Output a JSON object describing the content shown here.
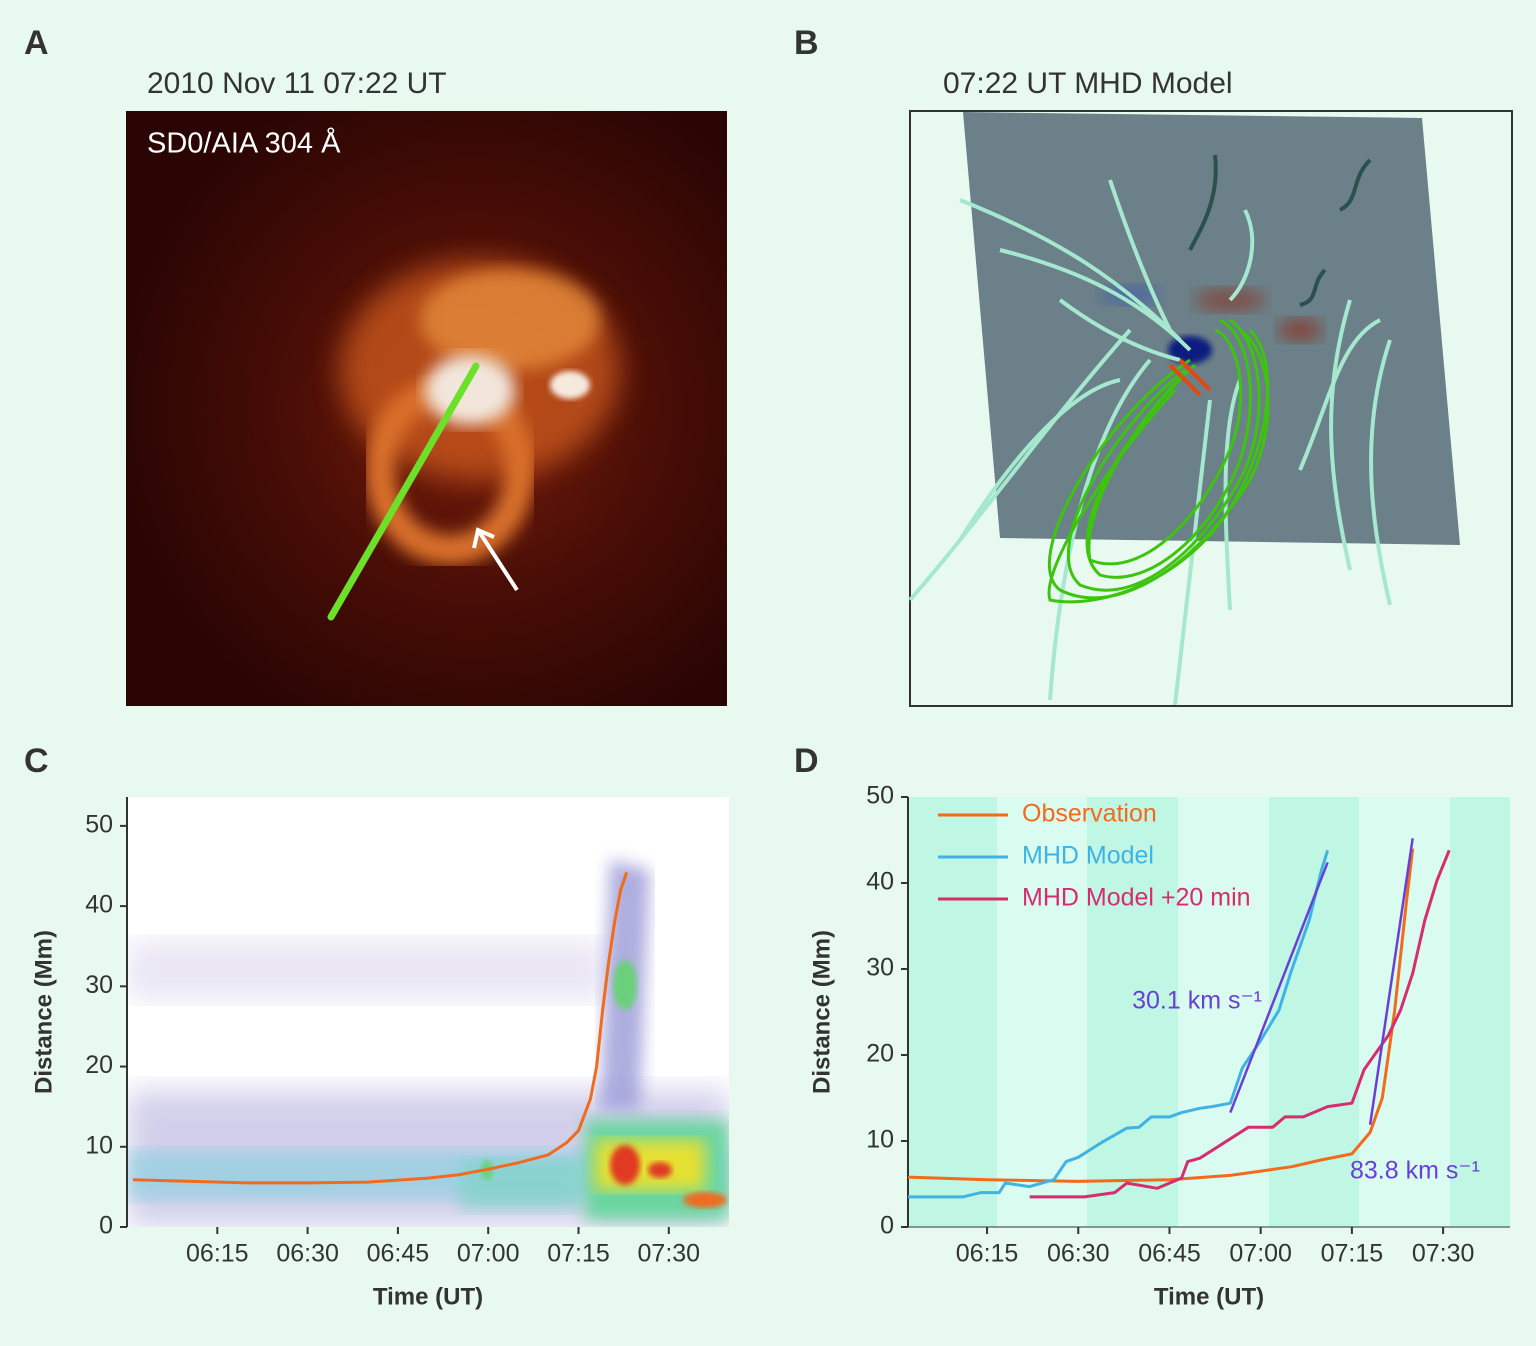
{
  "figure": {
    "panel_a": {
      "label": "A",
      "title": "2010 Nov 11 07:22 UT",
      "caption": "SD0/AIA 304 Å"
    },
    "panel_b": {
      "label": "B",
      "title": "07:22 UT MHD Model"
    }
  },
  "chart_data": [
    {
      "panel_label": "C",
      "type": "line",
      "xlabel": "Time (UT)",
      "ylabel": "Distance (Mm)",
      "xlim": [
        "06:00",
        "07:40"
      ],
      "ylim": [
        0,
        53.6
      ],
      "xticks": [
        "06:15",
        "06:30",
        "06:45",
        "07:00",
        "07:15",
        "07:30"
      ],
      "yticks": [
        0,
        10,
        20,
        30,
        40,
        50
      ],
      "series": [
        {
          "color": "#f26a1b",
          "x": [
            "06:01",
            "06:10",
            "06:20",
            "06:30",
            "06:40",
            "06:50",
            "06:55",
            "07:00",
            "07:05",
            "07:10",
            "07:13",
            "07:15",
            "07:16",
            "07:17",
            "07:18",
            "07:19",
            "07:20",
            "07:21",
            "07:22",
            "07:23"
          ],
          "values": [
            5.9,
            5.7,
            5.5,
            5.5,
            5.6,
            6.1,
            6.5,
            7.2,
            8.0,
            9.0,
            10.5,
            12,
            14,
            16,
            20,
            27,
            33,
            38,
            42,
            44.2
          ]
        }
      ]
    },
    {
      "panel_label": "D",
      "type": "line",
      "xlabel": "Time (UT)",
      "ylabel": "Distance (Mm)",
      "xlim": [
        "06:02",
        "07:41"
      ],
      "ylim": [
        0,
        50
      ],
      "xticks": [
        "06:15",
        "06:30",
        "06:45",
        "07:00",
        "07:15",
        "07:30"
      ],
      "yticks": [
        0,
        10,
        20,
        30,
        40,
        50
      ],
      "legend": "upper left",
      "series": [
        {
          "name": "Observation",
          "color": "#f26a1b",
          "x": [
            "06:02",
            "06:15",
            "06:30",
            "06:45",
            "06:55",
            "07:00",
            "07:05",
            "07:10",
            "07:15",
            "07:18",
            "07:20",
            "07:22",
            "07:24",
            "07:25"
          ],
          "values": [
            5.8,
            5.5,
            5.3,
            5.5,
            6.0,
            6.5,
            7.0,
            7.8,
            8.5,
            11,
            15,
            25,
            38,
            44
          ]
        },
        {
          "name": "MHD Model",
          "color": "#3fb2e6",
          "x": [
            "06:02",
            "06:11",
            "06:14",
            "06:17",
            "06:18",
            "06:22",
            "06:26",
            "06:28",
            "06:30",
            "06:34",
            "06:38",
            "06:40",
            "06:42",
            "06:45",
            "06:47",
            "06:50",
            "06:52",
            "06:55",
            "06:57",
            "07:00",
            "07:03",
            "07:05",
            "07:08",
            "07:10",
            "07:11"
          ],
          "values": [
            3.5,
            3.5,
            4.0,
            4.0,
            5.1,
            4.7,
            5.5,
            7.6,
            8.1,
            9.9,
            11.5,
            11.6,
            12.8,
            12.8,
            13.3,
            13.8,
            14.0,
            14.4,
            18.5,
            21.7,
            25.2,
            29.7,
            35.7,
            41.5,
            43.8
          ]
        },
        {
          "name": "MHD Model +20 min",
          "color": "#d62d6e",
          "x": [
            "06:22",
            "06:31",
            "06:36",
            "06:38",
            "06:43",
            "06:47",
            "06:48",
            "06:50",
            "06:54",
            "06:58",
            "07:02",
            "07:04",
            "07:07",
            "07:11",
            "07:15",
            "07:17",
            "07:21",
            "07:23",
            "07:25",
            "07:27",
            "07:29",
            "07:31"
          ],
          "values": [
            3.5,
            3.5,
            4.0,
            5.1,
            4.5,
            5.7,
            7.6,
            8.0,
            9.8,
            11.6,
            11.6,
            12.8,
            12.8,
            14.0,
            14.4,
            18.3,
            22.3,
            25.2,
            29.5,
            35.7,
            40.3,
            43.8
          ]
        }
      ],
      "fit_lines": [
        {
          "label": "30.1 km s⁻¹",
          "color": "#6a3fd6",
          "x": [
            "06:55",
            "07:11"
          ],
          "values": [
            13.3,
            42.4
          ]
        },
        {
          "label": "83.8 km s⁻¹",
          "color": "#6a3fd6",
          "x": [
            "07:18",
            "07:25"
          ],
          "values": [
            11.9,
            45.2
          ]
        }
      ]
    }
  ]
}
